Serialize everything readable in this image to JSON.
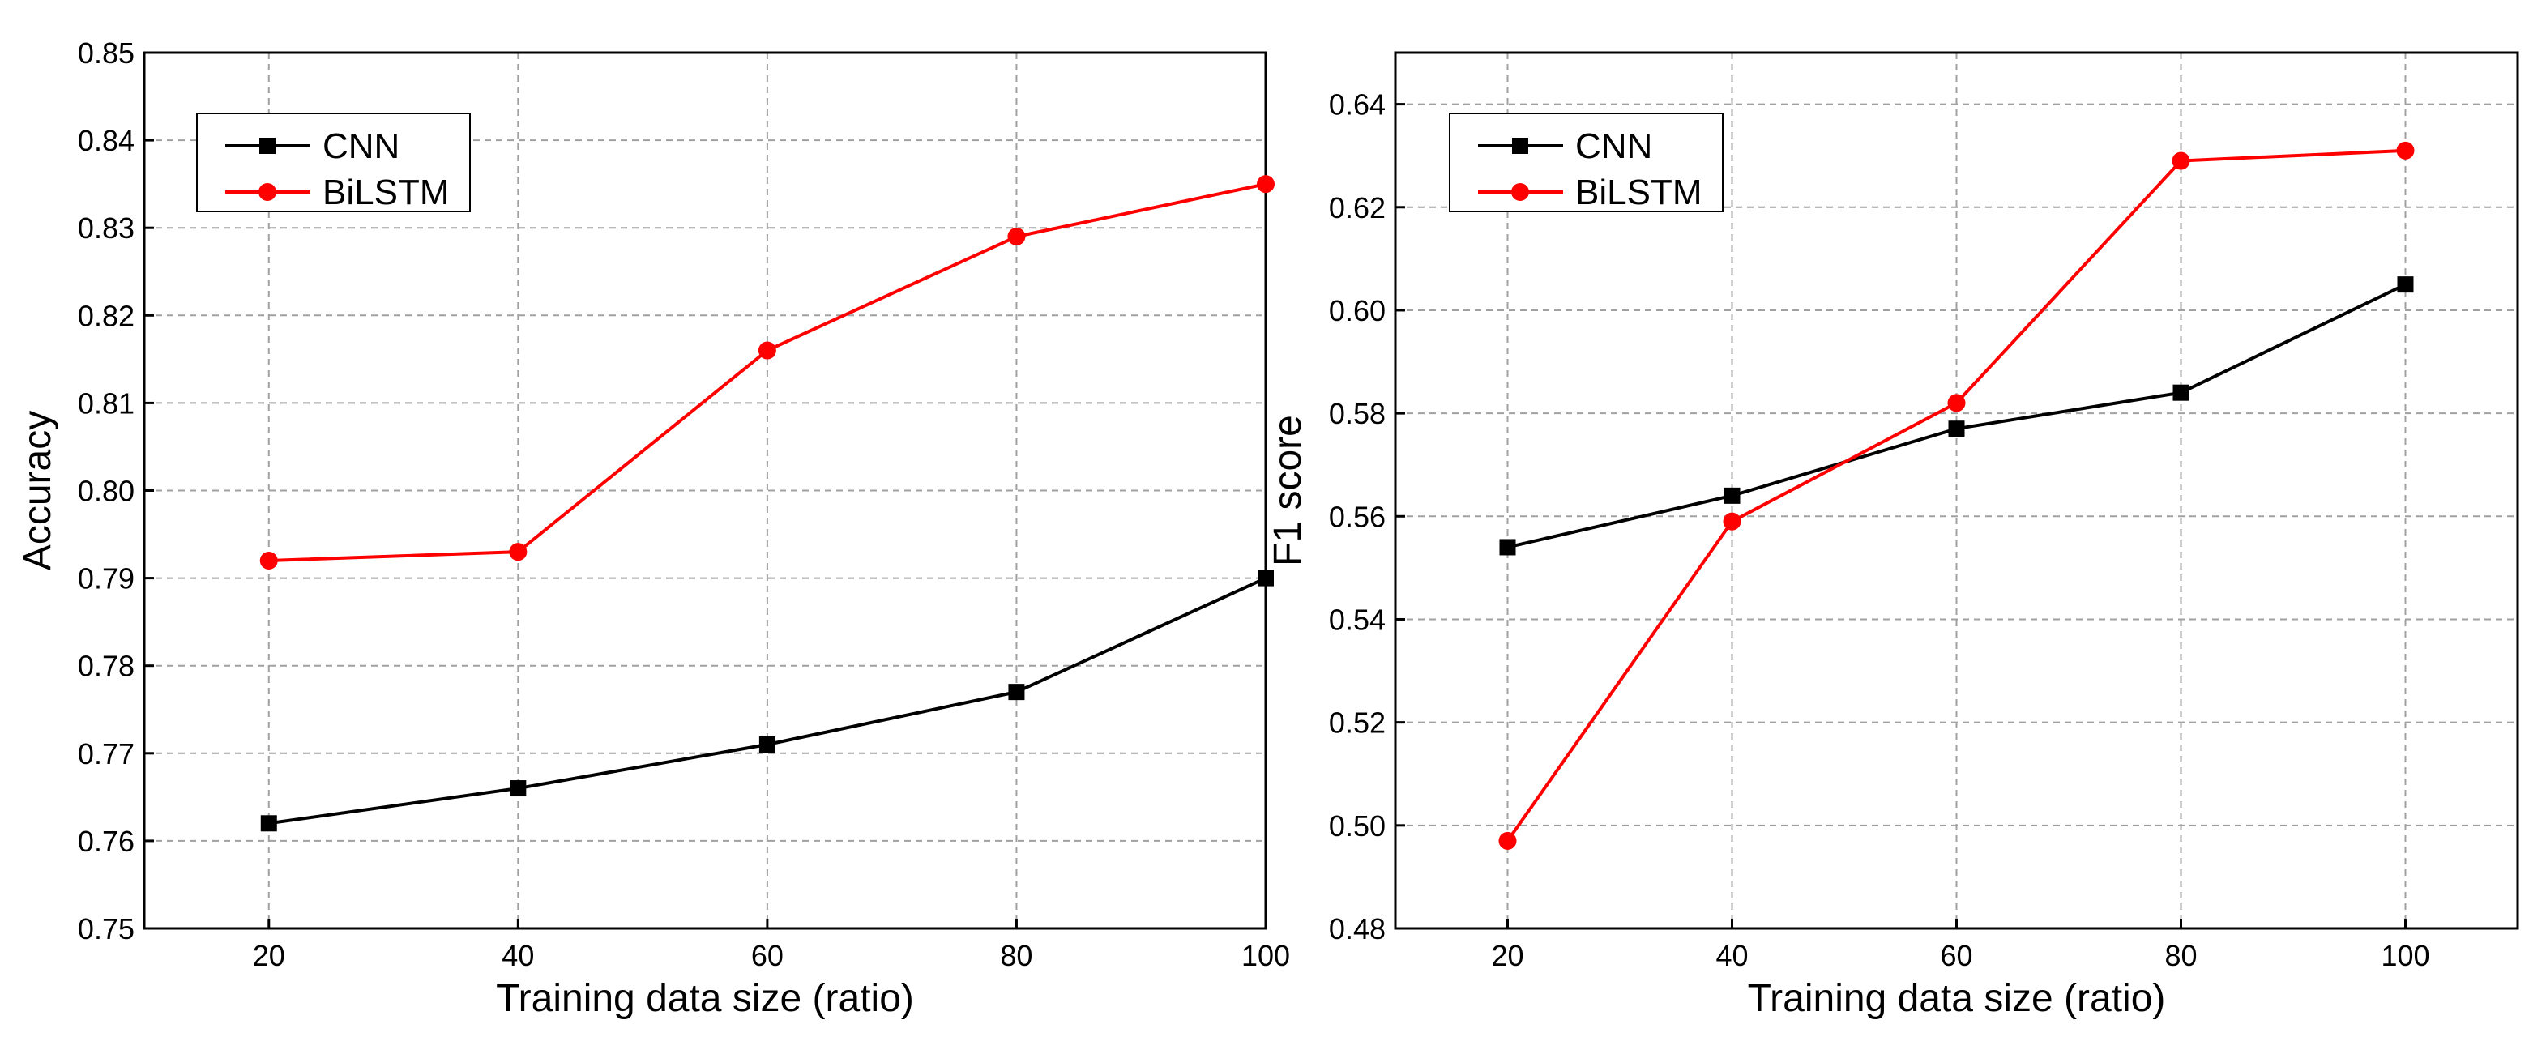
{
  "colors": {
    "cnn": "#000000",
    "bilstm": "#ff0000",
    "grid": "#a0a0a0",
    "axes": "#000000",
    "background": "#ffffff"
  },
  "chart_data": [
    {
      "type": "line",
      "title": "",
      "xlabel": "Training data size (ratio)",
      "ylabel": "Accuracy",
      "x": [
        20,
        40,
        60,
        80,
        100
      ],
      "xlim": [
        10,
        100
      ],
      "ylim": [
        0.75,
        0.85
      ],
      "xticks": [
        20,
        40,
        60,
        80,
        100
      ],
      "xtick_labels": [
        "20",
        "40",
        "60",
        "80",
        "100"
      ],
      "yticks": [
        0.75,
        0.76,
        0.77,
        0.78,
        0.79,
        0.8,
        0.81,
        0.82,
        0.83,
        0.84,
        0.85
      ],
      "ytick_labels": [
        "0.75",
        "0.76",
        "0.77",
        "0.78",
        "0.79",
        "0.80",
        "0.81",
        "0.82",
        "0.83",
        "0.84",
        "0.85"
      ],
      "grid": true,
      "legend_position": "top-left",
      "series": [
        {
          "name": "CNN",
          "color_key": "cnn",
          "marker": "square",
          "values": [
            0.762,
            0.766,
            0.771,
            0.777,
            0.79
          ]
        },
        {
          "name": "BiLSTM",
          "color_key": "bilstm",
          "marker": "circle",
          "values": [
            0.792,
            0.793,
            0.816,
            0.829,
            0.835
          ]
        }
      ]
    },
    {
      "type": "line",
      "title": "",
      "xlabel": "Training data size (ratio)",
      "ylabel": "F1 score",
      "x": [
        20,
        40,
        60,
        80,
        100
      ],
      "xlim": [
        10,
        110
      ],
      "ylim": [
        0.48,
        0.65
      ],
      "xticks": [
        20,
        40,
        60,
        80,
        100
      ],
      "xtick_labels": [
        "20",
        "40",
        "60",
        "80",
        "100"
      ],
      "yticks": [
        0.48,
        0.5,
        0.52,
        0.54,
        0.56,
        0.58,
        0.6,
        0.62,
        0.64
      ],
      "ytick_labels": [
        "0.48",
        "0.50",
        "0.52",
        "0.54",
        "0.56",
        "0.58",
        "0.60",
        "0.62",
        "0.64"
      ],
      "grid": true,
      "legend_position": "top-left",
      "series": [
        {
          "name": "CNN",
          "color_key": "cnn",
          "marker": "square",
          "values": [
            0.554,
            0.564,
            0.577,
            0.584,
            0.605
          ]
        },
        {
          "name": "BiLSTM",
          "color_key": "bilstm",
          "marker": "circle",
          "values": [
            0.497,
            0.559,
            0.582,
            0.629,
            0.631
          ]
        }
      ]
    }
  ]
}
